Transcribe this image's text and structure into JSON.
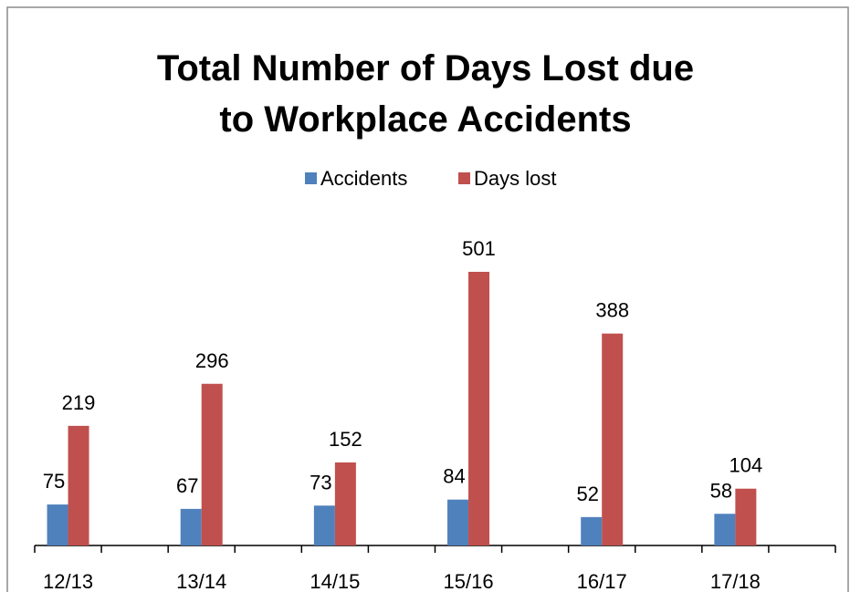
{
  "chart_data": {
    "type": "bar",
    "title": "Total Number of Days Lost due to Workplace Accidents",
    "categories": [
      "12/13",
      "13/14",
      "14/15",
      "15/16",
      "16/17",
      "17/18"
    ],
    "series": [
      {
        "name": "Accidents",
        "color": "#4f81bd",
        "values": [
          75,
          67,
          73,
          84,
          52,
          58
        ]
      },
      {
        "name": "Days lost",
        "color": "#c0504d",
        "values": [
          219,
          296,
          152,
          501,
          388,
          104
        ]
      }
    ],
    "legend": "top"
  }
}
